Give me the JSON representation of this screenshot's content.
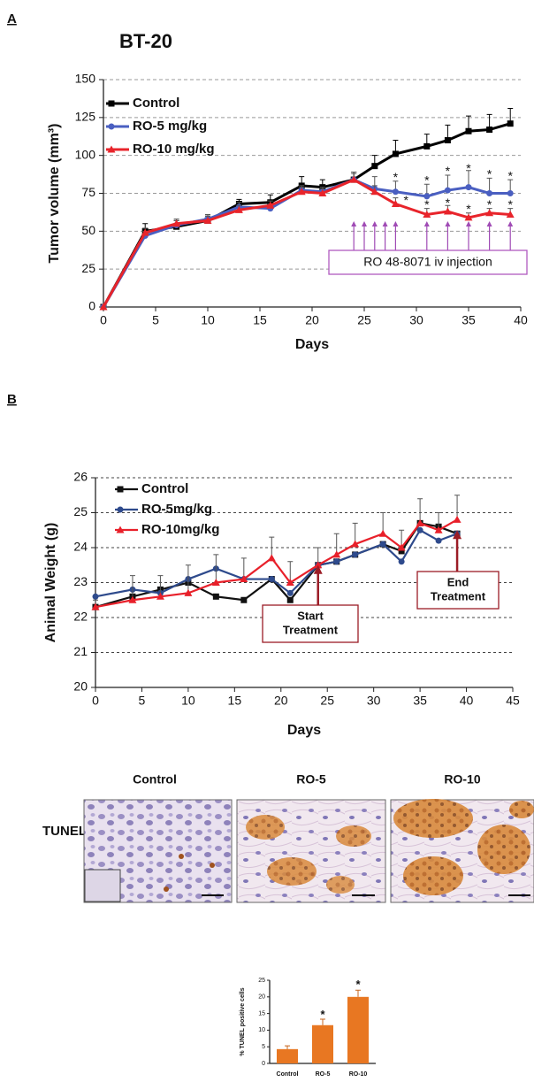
{
  "panel_labels": [
    "A",
    "B"
  ],
  "images": {
    "row_label": "TUNEL",
    "columns": [
      "Control",
      "RO-5",
      "RO-10"
    ]
  },
  "chart_data": [
    {
      "type": "line",
      "title": "BT-20",
      "xlabel": "Days",
      "ylabel": "Tumor volume (mm³)",
      "x": [
        0,
        4,
        7,
        10,
        13,
        16,
        19,
        21,
        24,
        26,
        28,
        31,
        33,
        35,
        37,
        39
      ],
      "xlim": [
        0,
        40
      ],
      "xticks": [
        0,
        5,
        10,
        15,
        20,
        25,
        30,
        35,
        40
      ],
      "ylim": [
        0,
        150
      ],
      "yticks": [
        0,
        25,
        50,
        75,
        100,
        125,
        150
      ],
      "grid": true,
      "legend": "upper left",
      "series": [
        {
          "name": "Control",
          "color": "#000000",
          "marker": "square",
          "values": [
            0,
            50,
            53,
            57,
            68,
            69,
            80,
            79,
            84,
            93,
            101,
            106,
            110,
            116,
            117,
            121
          ],
          "errors": [
            0,
            5,
            4,
            3,
            3,
            5,
            6,
            5,
            5,
            7,
            9,
            8,
            10,
            10,
            10,
            10
          ]
        },
        {
          "name": "RO-5 mg/kg",
          "color": "#4a5fc1",
          "marker": "circle",
          "values": [
            0,
            47,
            54,
            58,
            66,
            65,
            77,
            76,
            84,
            78,
            76,
            73,
            77,
            79,
            75,
            75
          ],
          "errors": [
            0,
            3,
            3,
            3,
            3,
            3,
            3,
            3,
            5,
            8,
            7,
            8,
            10,
            11,
            10,
            9
          ]
        },
        {
          "name": "RO-10 mg/kg",
          "color": "#e8242b",
          "marker": "triangle",
          "values": [
            0,
            49,
            55,
            57,
            64,
            67,
            76,
            75,
            84,
            76,
            68,
            61,
            63,
            59,
            62,
            61
          ],
          "errors": [
            0,
            3,
            3,
            3,
            3,
            3,
            3,
            3,
            4,
            4,
            4,
            4,
            4,
            3,
            3,
            4
          ]
        }
      ],
      "annotations": [
        {
          "text": "*",
          "x": 28,
          "y": 85
        },
        {
          "text": "*",
          "x": 31,
          "y": 83
        },
        {
          "text": "*",
          "x": 33,
          "y": 89
        },
        {
          "text": "*",
          "x": 35,
          "y": 91
        },
        {
          "text": "*",
          "x": 37,
          "y": 87
        },
        {
          "text": "*",
          "x": 39,
          "y": 86
        },
        {
          "text": "*",
          "x": 29,
          "y": 70
        },
        {
          "text": "*",
          "x": 31,
          "y": 67
        },
        {
          "text": "*",
          "x": 33,
          "y": 68
        },
        {
          "text": "*",
          "x": 35,
          "y": 64
        },
        {
          "text": "*",
          "x": 37,
          "y": 67
        },
        {
          "text": "*",
          "x": 39,
          "y": 67
        }
      ],
      "injection_label": "RO 48-8071 iv injection",
      "injection_days": [
        24,
        25,
        26,
        27,
        28,
        31,
        33,
        35,
        37,
        39
      ]
    },
    {
      "type": "line",
      "xlabel": "Days",
      "ylabel": "Animal Weight (g)",
      "x": [
        0,
        4,
        7,
        10,
        13,
        16,
        19,
        21,
        24,
        26,
        28,
        31,
        33,
        35,
        37,
        39
      ],
      "xlim": [
        0,
        45
      ],
      "xticks": [
        0,
        5,
        10,
        15,
        20,
        25,
        30,
        35,
        40,
        45
      ],
      "ylim": [
        20,
        26
      ],
      "yticks": [
        20,
        21,
        22,
        23,
        24,
        25,
        26
      ],
      "grid": true,
      "legend": "upper left",
      "series": [
        {
          "name": "Control",
          "color": "#111111",
          "marker": "square",
          "values": [
            22.3,
            22.6,
            22.8,
            23.0,
            22.6,
            22.5,
            23.1,
            22.5,
            23.5,
            23.6,
            23.8,
            24.1,
            23.9,
            24.7,
            24.6,
            24.4
          ]
        },
        {
          "name": "RO-5mg/kg",
          "color": "#2e4a8c",
          "marker": "circle",
          "values": [
            22.6,
            22.8,
            22.7,
            23.1,
            23.4,
            23.1,
            23.1,
            22.7,
            23.5,
            23.6,
            23.8,
            24.1,
            23.6,
            24.5,
            24.2,
            24.4
          ]
        },
        {
          "name": "RO-10mg/kg",
          "color": "#e8202a",
          "marker": "triangle",
          "values": [
            22.3,
            22.5,
            22.6,
            22.7,
            23.0,
            23.1,
            23.7,
            23.0,
            23.5,
            23.8,
            24.1,
            24.4,
            24.0,
            24.7,
            24.5,
            24.8
          ],
          "errors": [
            0.2,
            0.7,
            0.6,
            0.8,
            0.8,
            0.6,
            0.6,
            0.6,
            0.5,
            0.6,
            0.6,
            0.6,
            0.5,
            0.7,
            0.5,
            0.7
          ]
        }
      ],
      "annotations": [
        {
          "lines": [
            "Start",
            "Treatment"
          ],
          "x": 24,
          "y": 23.5
        },
        {
          "lines": [
            "End",
            "Treatment"
          ],
          "x": 39,
          "y": 24.5
        }
      ]
    },
    {
      "type": "bar",
      "ylabel": "% TUNEL positive cells",
      "color": "#e87722",
      "categories": [
        "Control",
        "RO-5",
        "RO-10"
      ],
      "values": [
        4.3,
        11.5,
        20
      ],
      "errors": [
        1,
        1.8,
        2
      ],
      "ylim": [
        0,
        25
      ],
      "yticks": [
        0,
        5,
        10,
        15,
        20,
        25
      ],
      "annotations": [
        {
          "text": "*",
          "x": "RO-5",
          "y": 14.5
        },
        {
          "text": "*",
          "x": "RO-10",
          "y": 23.5
        }
      ]
    }
  ]
}
